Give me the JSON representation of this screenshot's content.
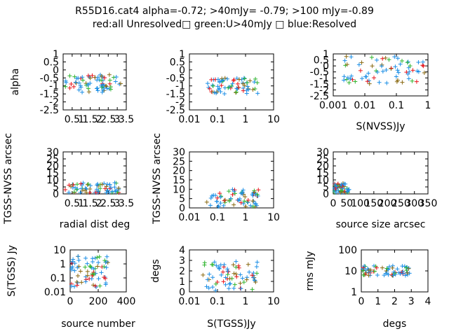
{
  "title_line1": "R55D16.cat4 alpha=-0.72; >40mJy= -0.79; >100 mJy=-0.89",
  "title_line2": "red:all Unresolved□ green:U>40mJy □ blue:Resolved",
  "colors": {
    "red": "#e8161c",
    "green": "#2fb52f",
    "blue": "#1c8fe6",
    "olive": "#8a6a12"
  },
  "chart_data": [
    {
      "type": "scatter",
      "xlabel": "",
      "ylabel": "alpha",
      "xticks": [
        "0.5",
        "1",
        "1.5",
        "2",
        "2.5",
        "3",
        "3.5"
      ],
      "yticks": [
        "1",
        "0.5",
        "0",
        "-0.5",
        "-1",
        "-1.5",
        "-2",
        "-2.5"
      ],
      "xlim": [
        0,
        3.5
      ],
      "ylim": [
        -2.5,
        1
      ],
      "xlog": false,
      "ylog": false,
      "cluster": {
        "x": [
          0.1,
          3.2
        ],
        "y": [
          -1.4,
          -0.3
        ]
      }
    },
    {
      "type": "scatter",
      "xlabel": "",
      "ylabel": "",
      "xticks": [
        "0.01",
        "0.1",
        "1",
        "10"
      ],
      "yticks": [
        "1",
        "0.5",
        "0",
        "-0.5",
        "-1",
        "-1.5",
        "-2",
        "-2.5"
      ],
      "xlim": [
        0.01,
        10
      ],
      "ylim": [
        -2.5,
        1
      ],
      "xlog": true,
      "ylog": false,
      "cluster": {
        "x": [
          0.04,
          3
        ],
        "y": [
          -1.5,
          -0.5
        ]
      }
    },
    {
      "type": "scatter",
      "xlabel": "S(NVSS)Jy",
      "ylabel": "",
      "xticks": [
        "0.001",
        "0.01",
        "0.1",
        "1"
      ],
      "yticks": [
        "1",
        "0.5",
        "0",
        "-0.5",
        "-1",
        "-1.5",
        "-2",
        "-2.5"
      ],
      "xlim": [
        0.001,
        1
      ],
      "ylim": [
        -2.5,
        1
      ],
      "xlog": true,
      "ylog": false,
      "cluster": {
        "x": [
          0.002,
          0.8
        ],
        "y": [
          -1.5,
          0.8
        ]
      }
    },
    {
      "type": "scatter",
      "xlabel": "radial dist deg",
      "ylabel": "TGSS-NVSS arcsec",
      "xticks": [
        "0.5",
        "1",
        "1.5",
        "2",
        "2.5",
        "3",
        "3.5"
      ],
      "yticks": [
        "30",
        "25",
        "20",
        "15",
        "10",
        "5",
        "0"
      ],
      "xlim": [
        0,
        3.5
      ],
      "ylim": [
        0,
        30
      ],
      "xlog": false,
      "ylog": false,
      "cluster": {
        "x": [
          0.1,
          3.2
        ],
        "y": [
          0,
          8
        ]
      }
    },
    {
      "type": "scatter",
      "xlabel": "",
      "ylabel": "TGSS-NVSS arcsec",
      "xticks": [
        "0.01",
        "0.1",
        "1",
        "10"
      ],
      "yticks": [
        "30",
        "25",
        "20",
        "15",
        "10",
        "5",
        "0"
      ],
      "xlim": [
        0.01,
        10
      ],
      "ylim": [
        0,
        30
      ],
      "xlog": true,
      "ylog": false,
      "cluster": {
        "x": [
          0.04,
          3
        ],
        "y": [
          0,
          10
        ]
      }
    },
    {
      "type": "scatter",
      "xlabel": "source size arcsec",
      "ylabel": "",
      "xticks": [
        "0",
        "50",
        "100",
        "150",
        "200",
        "250",
        "300",
        "350"
      ],
      "yticks": [
        "30",
        "25",
        "20",
        "15",
        "10",
        "5",
        "0"
      ],
      "xlim": [
        0,
        350
      ],
      "ylim": [
        0,
        30
      ],
      "xlog": false,
      "ylog": false,
      "cluster": {
        "x": [
          0,
          60
        ],
        "y": [
          0,
          8
        ]
      }
    },
    {
      "type": "scatter",
      "xlabel": "source number",
      "ylabel": "S(TGSS) Jy",
      "xticks": [
        "0",
        "200",
        "400"
      ],
      "yticks": [
        "10",
        "1",
        "0.1",
        "0.01"
      ],
      "xlim": [
        0,
        400
      ],
      "ylim": [
        0.01,
        10
      ],
      "xlog": false,
      "ylog": true,
      "cluster": {
        "x": [
          0,
          270
        ],
        "y": [
          0.02,
          4
        ]
      }
    },
    {
      "type": "scatter",
      "xlabel": "S(TGSS)Jy",
      "ylabel": "degs",
      "xticks": [
        "0.01",
        "0.1",
        "1",
        "10"
      ],
      "yticks": [
        "4",
        "3",
        "2",
        "1",
        "0"
      ],
      "xlim": [
        0.01,
        10
      ],
      "ylim": [
        0,
        4
      ],
      "xlog": true,
      "ylog": false,
      "cluster": {
        "x": [
          0.03,
          3
        ],
        "y": [
          0.1,
          3
        ]
      }
    },
    {
      "type": "scatter",
      "xlabel": "degs",
      "ylabel": "rms mJy",
      "xticks": [
        "0",
        "1",
        "2",
        "3",
        "4"
      ],
      "yticks": [
        "100",
        "10",
        "1"
      ],
      "xlim": [
        0,
        4
      ],
      "ylim": [
        1,
        100
      ],
      "xlog": false,
      "ylog": true,
      "cluster": {
        "x": [
          0,
          3
        ],
        "y": [
          6,
          18
        ]
      }
    }
  ]
}
